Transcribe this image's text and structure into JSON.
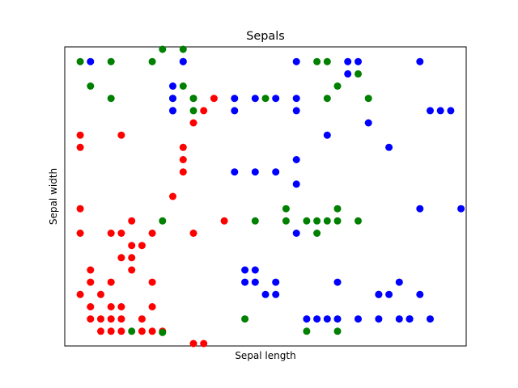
{
  "chart_data": {
    "type": "scatter",
    "title": "Sepals",
    "xlabel": "Sepal length",
    "ylabel": "Sepal width",
    "xticks": "hidden",
    "yticks": "hidden",
    "xlim": [
      4.15,
      8.05
    ],
    "ylim": [
      1.88,
      4.32
    ],
    "grid": false,
    "colors": {
      "red": "#ff0000",
      "green": "#008000",
      "blue": "#0000ff"
    },
    "series": [
      {
        "color": "red",
        "points": [
          [
            4.3,
            2.3
          ],
          [
            4.3,
            2.8
          ],
          [
            4.3,
            3.0
          ],
          [
            4.3,
            3.5
          ],
          [
            4.3,
            3.6
          ],
          [
            4.4,
            2.4
          ],
          [
            4.4,
            2.5
          ],
          [
            4.4,
            2.2
          ],
          [
            4.4,
            2.1
          ],
          [
            4.5,
            2.0
          ],
          [
            4.5,
            2.1
          ],
          [
            4.5,
            2.3
          ],
          [
            4.6,
            2.0
          ],
          [
            4.6,
            2.1
          ],
          [
            4.6,
            2.2
          ],
          [
            4.6,
            2.4
          ],
          [
            4.6,
            2.8
          ],
          [
            4.7,
            2.0
          ],
          [
            4.7,
            2.1
          ],
          [
            4.7,
            2.2
          ],
          [
            4.7,
            2.6
          ],
          [
            4.7,
            2.8
          ],
          [
            4.7,
            3.6
          ],
          [
            4.8,
            2.5
          ],
          [
            4.8,
            2.6
          ],
          [
            4.8,
            2.7
          ],
          [
            4.8,
            2.9
          ],
          [
            4.9,
            2.0
          ],
          [
            4.9,
            2.1
          ],
          [
            4.9,
            2.7
          ],
          [
            5.0,
            2.0
          ],
          [
            5.0,
            2.2
          ],
          [
            5.0,
            2.4
          ],
          [
            5.0,
            2.8
          ],
          [
            5.1,
            2.0
          ],
          [
            5.2,
            3.1
          ],
          [
            5.3,
            3.3
          ],
          [
            5.3,
            3.4
          ],
          [
            5.3,
            3.5
          ],
          [
            5.4,
            1.9
          ],
          [
            5.4,
            2.8
          ],
          [
            5.4,
            3.7
          ],
          [
            5.5,
            1.9
          ],
          [
            5.5,
            3.8
          ],
          [
            5.6,
            3.9
          ],
          [
            5.7,
            2.9
          ]
        ]
      },
      {
        "color": "green",
        "points": [
          [
            4.3,
            4.2
          ],
          [
            4.4,
            4.0
          ],
          [
            4.6,
            3.9
          ],
          [
            4.6,
            4.2
          ],
          [
            4.8,
            2.0
          ],
          [
            5.0,
            4.2
          ],
          [
            5.1,
            4.3
          ],
          [
            5.1,
            2.9
          ],
          [
            5.1,
            1.99
          ],
          [
            5.2,
            3.9
          ],
          [
            5.3,
            4.0
          ],
          [
            5.3,
            4.2
          ],
          [
            5.3,
            4.3
          ],
          [
            5.4,
            3.9
          ],
          [
            5.4,
            3.8
          ],
          [
            5.4,
            3.9
          ],
          [
            5.9,
            2.1
          ],
          [
            6.0,
            2.9
          ],
          [
            6.1,
            3.9
          ],
          [
            6.3,
            3.0
          ],
          [
            6.3,
            2.9
          ],
          [
            6.5,
            2.0
          ],
          [
            6.5,
            2.9
          ],
          [
            6.6,
            2.8
          ],
          [
            6.6,
            2.9
          ],
          [
            6.6,
            4.2
          ],
          [
            6.7,
            3.9
          ],
          [
            6.7,
            2.9
          ],
          [
            6.7,
            4.2
          ],
          [
            6.8,
            4.0
          ],
          [
            6.8,
            3.0
          ],
          [
            6.8,
            2.0
          ],
          [
            6.8,
            2.9
          ],
          [
            7.0,
            4.1
          ],
          [
            7.0,
            2.9
          ],
          [
            7.1,
            3.9
          ]
        ]
      },
      {
        "color": "blue",
        "points": [
          [
            4.4,
            4.2
          ],
          [
            5.2,
            4.0
          ],
          [
            5.2,
            3.9
          ],
          [
            5.2,
            3.8
          ],
          [
            5.2,
            3.8
          ],
          [
            5.3,
            4.2
          ],
          [
            5.8,
            3.3
          ],
          [
            5.8,
            3.9
          ],
          [
            5.8,
            3.8
          ],
          [
            6.0,
            3.3
          ],
          [
            6.0,
            3.9
          ],
          [
            6.2,
            3.3
          ],
          [
            6.2,
            3.9
          ],
          [
            6.4,
            3.8
          ],
          [
            6.4,
            3.9
          ],
          [
            6.4,
            4.2
          ],
          [
            6.4,
            3.4
          ],
          [
            6.4,
            3.2
          ],
          [
            6.7,
            3.6
          ],
          [
            6.9,
            4.2
          ],
          [
            6.9,
            4.1
          ],
          [
            7.0,
            4.2
          ],
          [
            7.1,
            3.7
          ],
          [
            7.2,
            2.3
          ],
          [
            7.3,
            3.5
          ],
          [
            7.2,
            2.1
          ],
          [
            7.6,
            4.2
          ],
          [
            7.6,
            3.0
          ],
          [
            7.7,
            3.8
          ],
          [
            7.8,
            3.8
          ],
          [
            8.0,
            3.0
          ],
          [
            7.9,
            3.8
          ],
          [
            5.9,
            2.5
          ],
          [
            6.0,
            2.5
          ],
          [
            6.2,
            2.4
          ],
          [
            6.4,
            2.8
          ],
          [
            6.8,
            2.4
          ],
          [
            7.2,
            2.3
          ],
          [
            5.9,
            2.4
          ],
          [
            6.0,
            2.4
          ],
          [
            6.1,
            2.3
          ],
          [
            6.2,
            2.3
          ],
          [
            6.5,
            2.1
          ],
          [
            6.6,
            2.1
          ],
          [
            6.7,
            2.1
          ],
          [
            6.8,
            2.1
          ],
          [
            7.0,
            2.1
          ],
          [
            7.3,
            2.3
          ],
          [
            7.4,
            2.1
          ],
          [
            7.5,
            2.1
          ],
          [
            7.6,
            2.3
          ],
          [
            7.7,
            2.1
          ],
          [
            7.4,
            2.4
          ],
          [
            7.5,
            2.1
          ]
        ]
      }
    ]
  }
}
